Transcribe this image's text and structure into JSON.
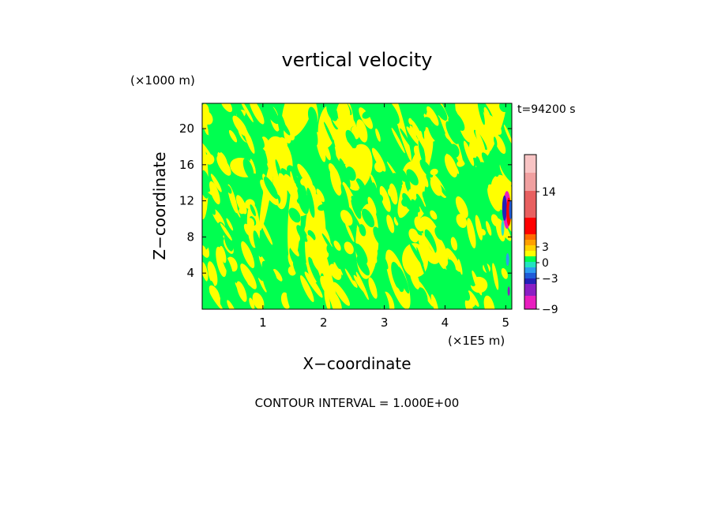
{
  "chart_data": {
    "type": "heatmap",
    "title": "vertical velocity",
    "xlabel": "X−coordinate",
    "ylabel": "Z−coordinate",
    "x_unit": "(×1E5 m)",
    "y_unit": "(×1000 m)",
    "time_label": "t=94200 s",
    "contour_interval_label": "CONTOUR INTERVAL = 1.000E+00",
    "xlim": [
      0,
      5.1
    ],
    "ylim": [
      0,
      22.8
    ],
    "xticks": [
      1,
      2,
      3,
      4,
      5
    ],
    "yticks": [
      4,
      8,
      12,
      16,
      20
    ],
    "colorbar": {
      "tick_labels": [
        "14",
        "3",
        "0",
        "−3",
        "−9"
      ],
      "levels": [
        {
          "value": -9,
          "color": "#e81ebf"
        },
        {
          "value": -6,
          "color": "#8a1fc4"
        },
        {
          "value": -4,
          "color": "#2222b8"
        },
        {
          "value": -3,
          "color": "#1f5bd8"
        },
        {
          "value": -2,
          "color": "#2d9cf0"
        },
        {
          "value": -1,
          "color": "#23e3c0"
        },
        {
          "value": 0,
          "color": "#00ff50"
        },
        {
          "value": 1,
          "color": "#ffff00"
        },
        {
          "value": 2,
          "color": "#ffd400"
        },
        {
          "value": 3,
          "color": "#ffa000"
        },
        {
          "value": 4,
          "color": "#ff6a00"
        },
        {
          "value": 5,
          "color": "#ff0000"
        },
        {
          "value": 8,
          "color": "#e86060"
        },
        {
          "value": 14,
          "color": "#f0a0a0"
        },
        {
          "value": 20,
          "color": "#f8c4c4"
        }
      ]
    },
    "field_colors": {
      "positive": "#ffff00",
      "negative": "#00ff50"
    }
  }
}
